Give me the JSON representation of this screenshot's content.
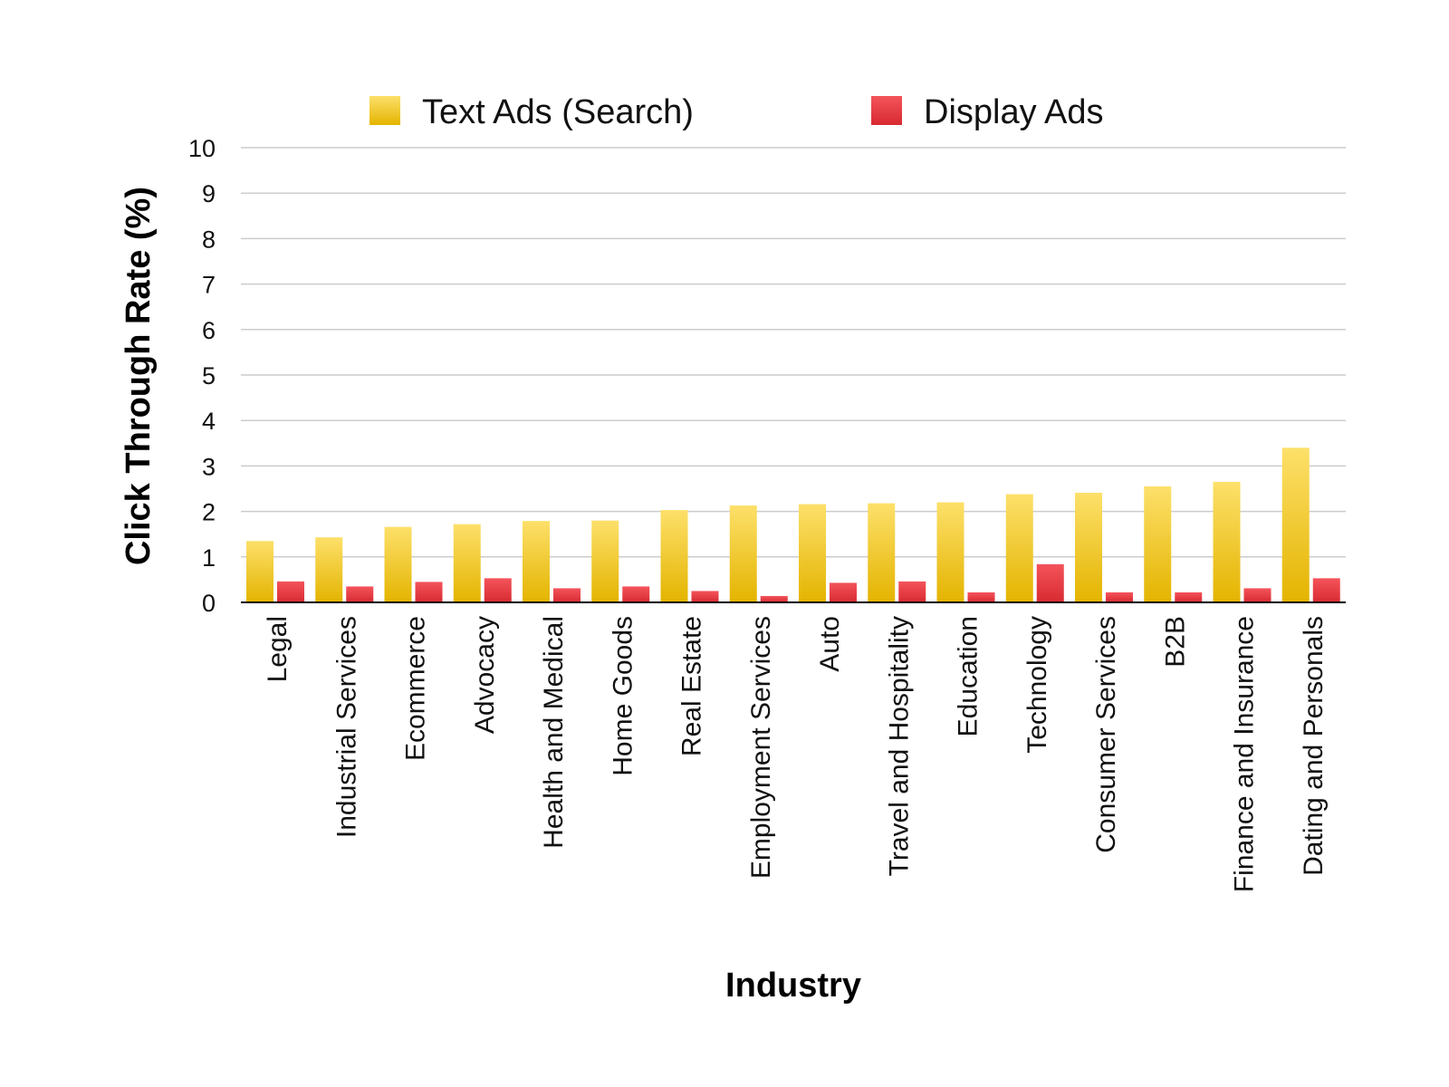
{
  "chart_data": {
    "type": "bar",
    "xlabel": "Industry",
    "ylabel": "Click Through Rate (%)",
    "ylim": [
      0,
      10
    ],
    "yticks": [
      0,
      1,
      2,
      3,
      4,
      5,
      6,
      7,
      8,
      9,
      10
    ],
    "grid": true,
    "legend_position": "top",
    "categories": [
      "Legal",
      "Industrial Services",
      "Ecommerce",
      "Advocacy",
      "Health and Medical",
      "Home Goods",
      "Real Estate",
      "Employment Services",
      "Auto",
      "Travel and Hospitality",
      "Education",
      "Technology",
      "Consumer Services",
      "B2B",
      "Finance and Insurance",
      "Dating and Personals"
    ],
    "series": [
      {
        "name": "Text Ads (Search)",
        "color": "#f2c318",
        "values": [
          1.35,
          1.43,
          1.66,
          1.72,
          1.79,
          1.8,
          2.03,
          2.13,
          2.16,
          2.18,
          2.2,
          2.38,
          2.41,
          2.55,
          2.65,
          3.4
        ]
      },
      {
        "name": "Display Ads",
        "color": "#e8333b",
        "values": [
          0.46,
          0.35,
          0.45,
          0.53,
          0.31,
          0.35,
          0.25,
          0.14,
          0.43,
          0.46,
          0.22,
          0.84,
          0.22,
          0.22,
          0.31,
          0.53
        ]
      }
    ]
  }
}
